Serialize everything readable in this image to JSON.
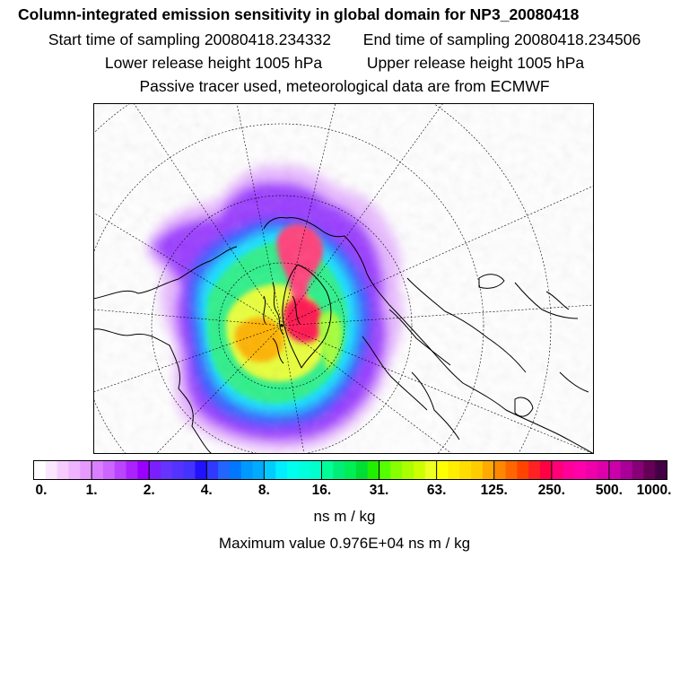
{
  "header": {
    "title": "Column-integrated emission sensitivity in global domain for NP3_20080418",
    "start_time": "Start time of sampling 20080418.234332",
    "end_time": "End time of sampling 20080418.234506",
    "lower_release": "Lower release height 1005 hPa",
    "upper_release": "Upper release height 1005 hPa",
    "tracer_note": "Passive tracer used, meteorological data are from ECMWF"
  },
  "legend": {
    "tick_labels": [
      "0.",
      "1.",
      "2.",
      "4.",
      "8.",
      "16.",
      "31.",
      "63.",
      "125.",
      "250.",
      "500.",
      "1000."
    ],
    "colors": [
      "#ffffff",
      "#fbe6ff",
      "#f6ccff",
      "#f0b3ff",
      "#e699ff",
      "#d97fff",
      "#cc66ff",
      "#bb44ff",
      "#aa22ff",
      "#9900ff",
      "#7a1fff",
      "#6633ff",
      "#5533ff",
      "#4433ff",
      "#2211ff",
      "#2f39ff",
      "#2266ff",
      "#0077ff",
      "#0099ff",
      "#00aaff",
      "#00ccff",
      "#00eeff",
      "#00ffee",
      "#00ffdd",
      "#00ffcc",
      "#00ff99",
      "#00ee77",
      "#00ee55",
      "#00dd33",
      "#22ee00",
      "#55ff00",
      "#88ff00",
      "#aaff00",
      "#ccff00",
      "#eeff22",
      "#ffff00",
      "#ffee00",
      "#ffdd00",
      "#ffcc00",
      "#ffaa00",
      "#ff8800",
      "#ff6600",
      "#ff4400",
      "#ff2222",
      "#ff0044",
      "#ff0077",
      "#ff0099",
      "#ff00aa",
      "#ee00aa",
      "#dd00aa",
      "#cc00aa",
      "#aa0099",
      "#880077",
      "#660055",
      "#440044"
    ],
    "units": "ns m / kg",
    "maximum": "Maximum value  0.976E+04 ns m / kg"
  },
  "map": {
    "description_colors": {
      "outer": "#d58cff",
      "violet": "#8a2bff",
      "blue": "#2a6bff",
      "cyan": "#00e5ff",
      "green": "#22f07a",
      "yellow": "#f7ff2a",
      "orange": "#ffb000",
      "red": "#ff1a55"
    }
  }
}
